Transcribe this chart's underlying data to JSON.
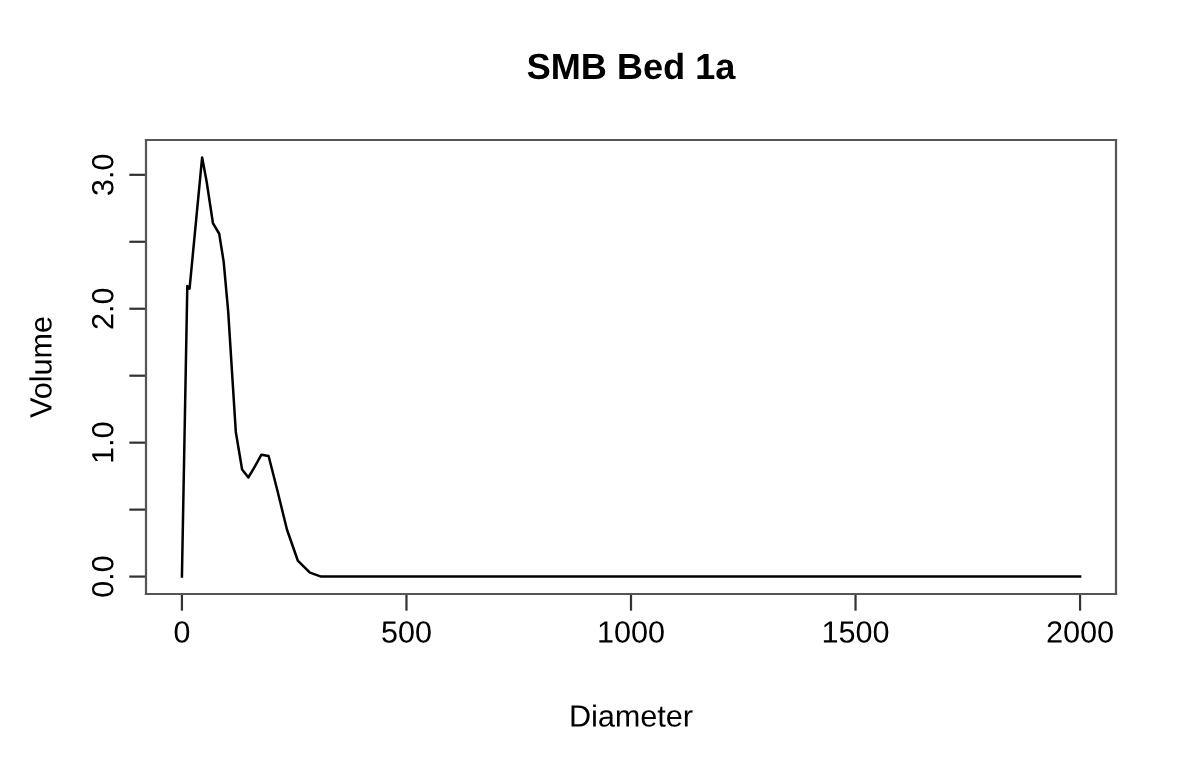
{
  "chart_data": {
    "type": "line",
    "title": "SMB Bed 1a",
    "xlabel": "Diameter",
    "ylabel": "Volume",
    "x": [
      0,
      12,
      17,
      45,
      55,
      69,
      83,
      93,
      103,
      120,
      134,
      148,
      162,
      177,
      193,
      212,
      234,
      258,
      285,
      310,
      2000
    ],
    "series": [
      {
        "color": "#000000",
        "values": [
          0,
          2.17,
          2.15,
          3.13,
          2.95,
          2.64,
          2.56,
          2.35,
          1.98,
          1.08,
          0.8,
          0.74,
          0.82,
          0.91,
          0.9,
          0.65,
          0.35,
          0.12,
          0.03,
          0,
          0
        ]
      }
    ],
    "xlim": [
      -80,
      2080
    ],
    "ylim": [
      -0.13,
      3.26
    ],
    "xticks": [
      0,
      500,
      1000,
      1500,
      2000
    ],
    "yticks": [
      {
        "value": 0,
        "label": "0.0"
      },
      {
        "value": 0.5,
        "label": null
      },
      {
        "value": 1,
        "label": "1.0"
      },
      {
        "value": 1.5,
        "label": null
      },
      {
        "value": 2,
        "label": "2.0"
      },
      {
        "value": 2.5,
        "label": null
      },
      {
        "value": 3,
        "label": "3.0"
      }
    ],
    "grid": false,
    "legend": false,
    "marker": "none",
    "line_style": "solid"
  }
}
